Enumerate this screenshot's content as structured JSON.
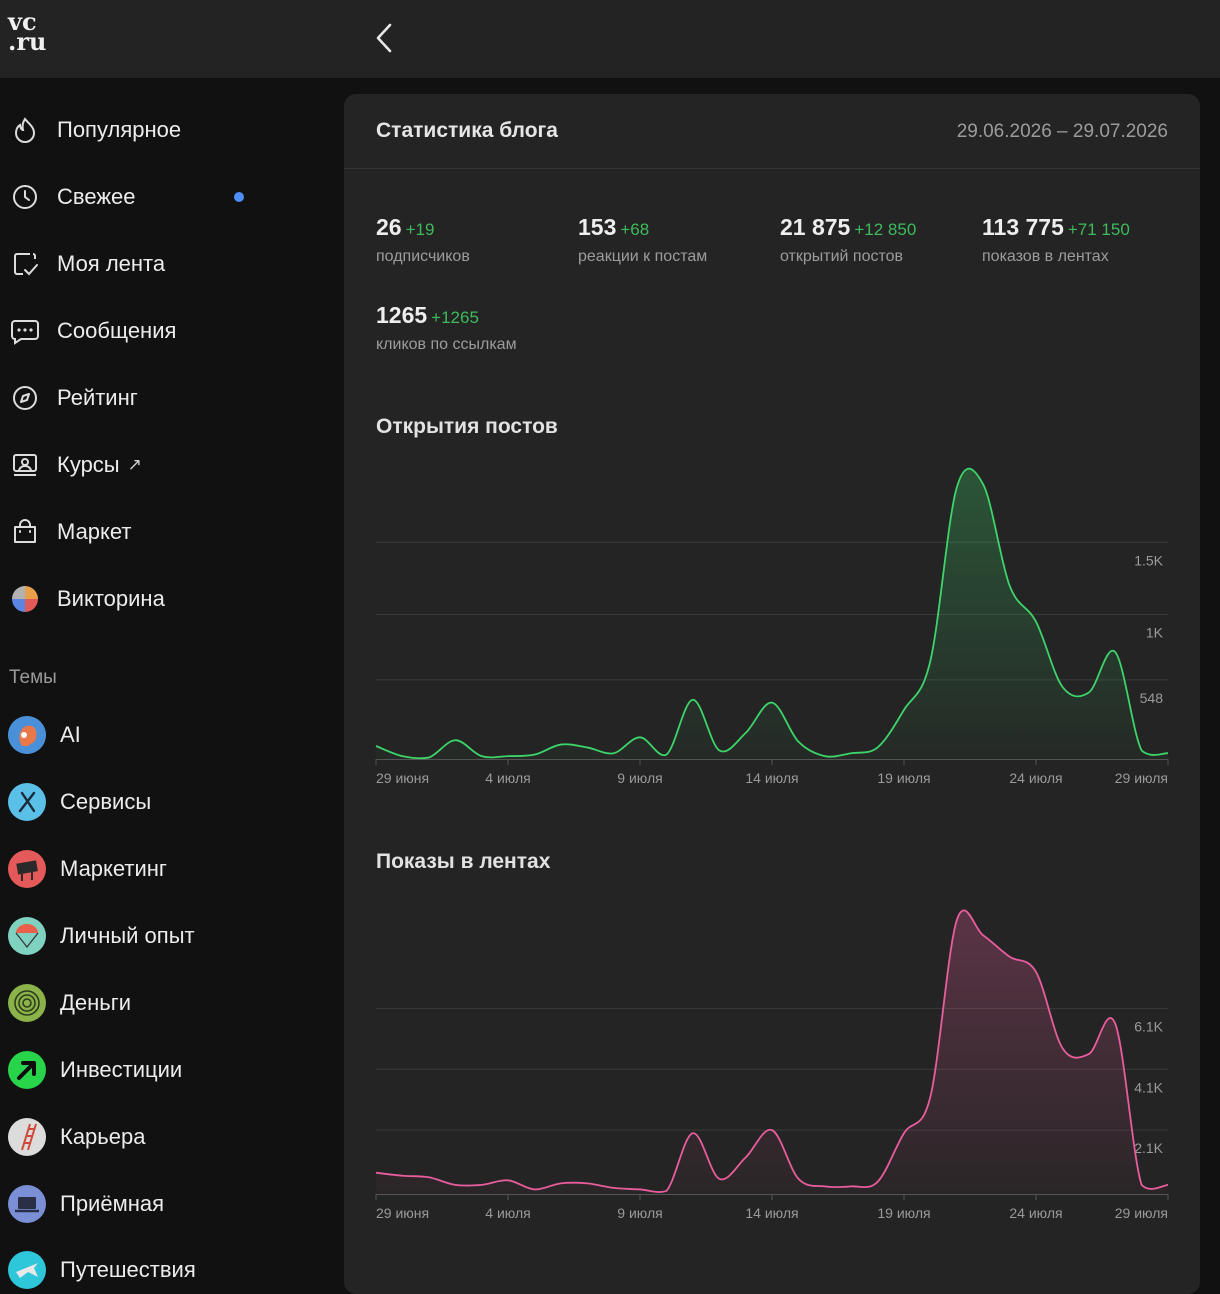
{
  "header": {
    "logo_line1": "vc",
    "logo_line2": ".ru"
  },
  "sidebar": {
    "items": [
      {
        "label": "Популярное",
        "icon": "flame-icon"
      },
      {
        "label": "Свежее",
        "icon": "clock-icon",
        "has_unread_dot": true
      },
      {
        "label": "Моя лента",
        "icon": "feed-check-icon"
      },
      {
        "label": "Сообщения",
        "icon": "chat-bubble-icon"
      },
      {
        "label": "Рейтинг",
        "icon": "compass-icon"
      },
      {
        "label": "Курсы",
        "icon": "courses-icon",
        "external": "↗"
      },
      {
        "label": "Маркет",
        "icon": "shopping-bag-icon"
      },
      {
        "label": "Викторина",
        "icon": "quiz-pie-icon"
      }
    ],
    "themes_heading": "Темы",
    "themes": [
      {
        "label": "AI",
        "icon": "ai-head-icon",
        "color": "#4a90d9"
      },
      {
        "label": "Сервисы",
        "icon": "tools-icon",
        "color": "#5bc0e8"
      },
      {
        "label": "Маркетинг",
        "icon": "billboard-icon",
        "color": "#e45a5a"
      },
      {
        "label": "Личный опыт",
        "icon": "parachute-icon",
        "color": "#7fd1c0"
      },
      {
        "label": "Деньги",
        "icon": "fingerprint-icon",
        "color": "#8bb34a"
      },
      {
        "label": "Инвестиции",
        "icon": "arrow-up-right-icon",
        "color": "#27d44a"
      },
      {
        "label": "Карьера",
        "icon": "ladder-icon",
        "color": "#dcdcdc"
      },
      {
        "label": "Приёмная",
        "icon": "laptop-icon",
        "color": "#7a8fd6"
      },
      {
        "label": "Путешествия",
        "icon": "airplane-icon",
        "color": "#2ec6d9"
      }
    ]
  },
  "stats_card": {
    "title": "Статистика блога",
    "date_range": "29.06.2026 – 29.07.2026",
    "stats": [
      {
        "value": "26",
        "delta": "+19",
        "caption": "подписчиков"
      },
      {
        "value": "153",
        "delta": "+68",
        "caption": "реакции к постам"
      },
      {
        "value": "21 875",
        "delta": "+12 850",
        "caption": "открытий постов"
      },
      {
        "value": "113 775",
        "delta": "+71 150",
        "caption": "показов в лентах"
      },
      {
        "value": "1265",
        "delta": "+1265",
        "caption": "кликов по ссылкам"
      }
    ]
  },
  "chart_data": [
    {
      "type": "area",
      "title": "Открытия постов",
      "color": "#3dd46a",
      "x_ticks": [
        "29 июня",
        "4 июля",
        "9 июля",
        "14 июля",
        "19 июля",
        "24 июля",
        "29 июля"
      ],
      "y_ticks": [
        "548",
        "1K",
        "1.5K"
      ],
      "y_tick_values": [
        548,
        1000,
        1500
      ],
      "ylim": [
        0,
        2000
      ],
      "x": [
        "29.06",
        "30.06",
        "01.07",
        "02.07",
        "03.07",
        "04.07",
        "05.07",
        "06.07",
        "07.07",
        "08.07",
        "09.07",
        "10.07",
        "11.07",
        "12.07",
        "13.07",
        "14.07",
        "15.07",
        "16.07",
        "17.07",
        "18.07",
        "19.07",
        "20.07",
        "21.07",
        "22.07",
        "23.07",
        "24.07",
        "25.07",
        "26.07",
        "27.07",
        "28.07",
        "29.07"
      ],
      "values": [
        90,
        20,
        10,
        130,
        20,
        20,
        30,
        100,
        80,
        40,
        150,
        30,
        410,
        60,
        180,
        390,
        120,
        20,
        40,
        80,
        340,
        680,
        1880,
        1900,
        1200,
        950,
        500,
        460,
        740,
        60,
        40
      ]
    },
    {
      "type": "area",
      "title": "Показы в лентах",
      "color": "#e85d9c",
      "x_ticks": [
        "29 июня",
        "4 июля",
        "9 июля",
        "14 июля",
        "19 июля",
        "24 июля",
        "29 июля"
      ],
      "y_ticks": [
        "2.1K",
        "4.1K",
        "6.1K"
      ],
      "y_tick_values": [
        2100,
        4100,
        6100
      ],
      "ylim": [
        0,
        9500
      ],
      "x": [
        "29.06",
        "30.06",
        "01.07",
        "02.07",
        "03.07",
        "04.07",
        "05.07",
        "06.07",
        "07.07",
        "08.07",
        "09.07",
        "10.07",
        "11.07",
        "12.07",
        "13.07",
        "14.07",
        "15.07",
        "16.07",
        "17.07",
        "18.07",
        "19.07",
        "20.07",
        "21.07",
        "22.07",
        "23.07",
        "24.07",
        "25.07",
        "26.07",
        "27.07",
        "28.07",
        "29.07"
      ],
      "values": [
        700,
        600,
        550,
        300,
        300,
        450,
        150,
        350,
        350,
        200,
        150,
        100,
        2000,
        500,
        1200,
        2100,
        500,
        250,
        250,
        400,
        2000,
        3200,
        9000,
        8500,
        7800,
        7300,
        4800,
        4600,
        5600,
        300,
        300
      ]
    }
  ]
}
